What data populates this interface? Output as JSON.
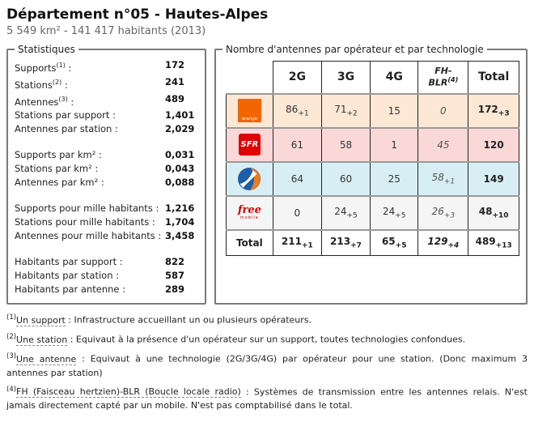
{
  "page": {
    "title": "Département n°05 - Hautes-Alpes",
    "subtitle": "5 549 km² - 141 417 habitants (2013)"
  },
  "stats": {
    "legend": "Statistiques",
    "label_suffix": " :",
    "groups": [
      [
        {
          "label": "Supports",
          "sup": "(1)",
          "value": "172"
        },
        {
          "label": "Stations",
          "sup": "(2)",
          "value": "241"
        },
        {
          "label": "Antennes",
          "sup": "(3)",
          "value": "489"
        },
        {
          "label": "Stations par support",
          "sup": "",
          "value": "1,401"
        },
        {
          "label": "Antennes par station",
          "sup": "",
          "value": "2,029"
        }
      ],
      [
        {
          "label": "Supports par km²",
          "sup": "",
          "value": "0,031"
        },
        {
          "label": "Stations par km²",
          "sup": "",
          "value": "0,043"
        },
        {
          "label": "Antennes par km²",
          "sup": "",
          "value": "0,088"
        }
      ],
      [
        {
          "label": "Supports pour mille habitants",
          "sup": "",
          "value": "1,216"
        },
        {
          "label": "Stations pour mille habitants",
          "sup": "",
          "value": "1,704"
        },
        {
          "label": "Antennes pour mille habitants",
          "sup": "",
          "value": "3,458"
        }
      ],
      [
        {
          "label": "Habitants par support",
          "sup": "",
          "value": "822"
        },
        {
          "label": "Habitants par station",
          "sup": "",
          "value": "587"
        },
        {
          "label": "Habitants par antenne",
          "sup": "",
          "value": "289"
        }
      ]
    ]
  },
  "antennas": {
    "legend": "Nombre d'antennes par opérateur et par technologie",
    "header": {
      "col_2g": "2G",
      "col_3g": "3G",
      "col_4g": "4G",
      "col_fhblr": "FH-BLR",
      "col_fhblr_sup": "(4)",
      "col_total": "Total"
    },
    "operators": [
      {
        "name": "Orange",
        "logo": "orange",
        "logo_text": "orange",
        "brand_color": "#f26500",
        "row_color": "#fce8d5",
        "cells": [
          {
            "value": "86",
            "delta": "+1"
          },
          {
            "value": "71",
            "delta": "+2"
          },
          {
            "value": "15",
            "delta": ""
          },
          {
            "value": "0",
            "delta": ""
          },
          {
            "value": "172",
            "delta": "+3"
          }
        ]
      },
      {
        "name": "SFR",
        "logo": "sfr",
        "logo_text": "SFR",
        "brand_color": "#de0000",
        "row_color": "#fbd8d8",
        "cells": [
          {
            "value": "61",
            "delta": ""
          },
          {
            "value": "58",
            "delta": ""
          },
          {
            "value": "1",
            "delta": ""
          },
          {
            "value": "45",
            "delta": ""
          },
          {
            "value": "120",
            "delta": ""
          }
        ]
      },
      {
        "name": "Bouygues Telecom",
        "logo": "bouygues",
        "logo_text": "",
        "brand_color": "#1d5ea8",
        "row_color": "#d8eef5",
        "cells": [
          {
            "value": "64",
            "delta": ""
          },
          {
            "value": "60",
            "delta": ""
          },
          {
            "value": "25",
            "delta": ""
          },
          {
            "value": "58",
            "delta": "+1"
          },
          {
            "value": "149",
            "delta": ""
          }
        ]
      },
      {
        "name": "Free Mobile",
        "logo": "free",
        "logo_text": "free",
        "logo_subtext": "mobile",
        "brand_color": "#cc0000",
        "row_color": "#f5f5f5",
        "cells": [
          {
            "value": "0",
            "delta": ""
          },
          {
            "value": "24",
            "delta": "+5"
          },
          {
            "value": "24",
            "delta": "+5"
          },
          {
            "value": "26",
            "delta": "+3"
          },
          {
            "value": "48",
            "delta": "+10"
          }
        ]
      }
    ],
    "total": {
      "label": "Total",
      "cells": [
        {
          "value": "211",
          "delta": "+1"
        },
        {
          "value": "213",
          "delta": "+7"
        },
        {
          "value": "65",
          "delta": "+5"
        },
        {
          "value": "129",
          "delta": "+4"
        },
        {
          "value": "489",
          "delta": "+13"
        }
      ]
    }
  },
  "footnotes": [
    {
      "sup": "(1)",
      "term": "Un support",
      "text": " : Infrastructure accueillant un ou plusieurs opérateurs."
    },
    {
      "sup": "(2)",
      "term": "Une station",
      "text": " : Equivaut à la présence d'un opérateur sur un support, toutes technologies confondues."
    },
    {
      "sup": "(3)",
      "term": "Une antenne",
      "text": " : Equivaut à une technologie (2G/3G/4G) par opérateur pour une station. (Donc maximum 3 antennes par station)"
    },
    {
      "sup": "(4)",
      "term": "FH (Faisceau hertzien)-BLR (Boucle locale radio)",
      "text": " : Systèmes de transmission entre les antennes relais. N'est jamais directement capté par un mobile. N'est pas comptabilisé dans le total."
    }
  ]
}
